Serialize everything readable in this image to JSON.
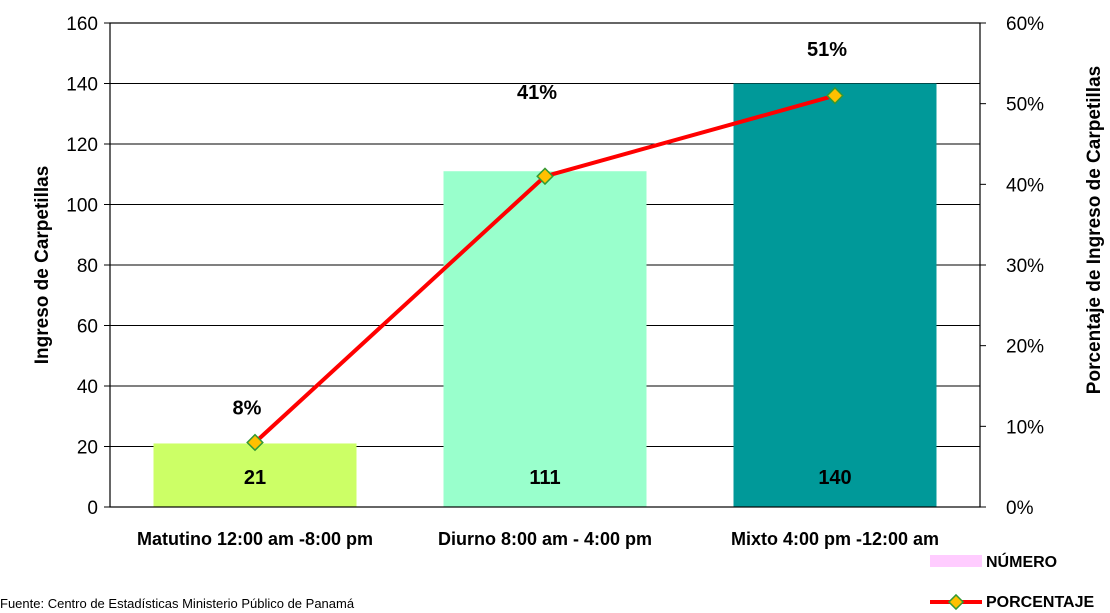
{
  "chart_data": {
    "type": "bar",
    "title": "",
    "categories": [
      "Matutino 12:00 am -8:00 pm",
      "Diurno 8:00 am - 4:00 pm",
      "Mixto 4:00 pm -12:00 am"
    ],
    "series": [
      {
        "name": "NÚMERO",
        "type": "bar",
        "axis": "left",
        "values": [
          21,
          111,
          140
        ],
        "labels": [
          "21",
          "111",
          "140"
        ],
        "colors": [
          "#ccff66",
          "#99ffcc",
          "#009999"
        ]
      },
      {
        "name": "PORCENTAJE",
        "type": "line",
        "axis": "right",
        "values": [
          0.08,
          0.41,
          0.51
        ],
        "labels": [
          "8%",
          "41%",
          "51%"
        ],
        "line_color": "#ff0000",
        "marker_fill": "#ffc000",
        "marker_stroke": "#339933"
      }
    ],
    "ylabel": "Ingreso de Carpetillas",
    "y2label": "Porcentaje de Ingreso de Carpetillas",
    "ylim": [
      0,
      160
    ],
    "y_ticks": [
      "0",
      "20",
      "40",
      "60",
      "80",
      "100",
      "120",
      "140",
      "160"
    ],
    "y2lim": [
      0,
      0.6
    ],
    "y2_ticks": [
      "0%",
      "10%",
      "20%",
      "30%",
      "40%",
      "50%",
      "60%"
    ],
    "grid": true,
    "legend_position": "bottom-right",
    "legend_swatch_bar": "#ffccff"
  },
  "source_note": "Fuente: Centro de Estadísticas Ministerio Público de Panamá"
}
